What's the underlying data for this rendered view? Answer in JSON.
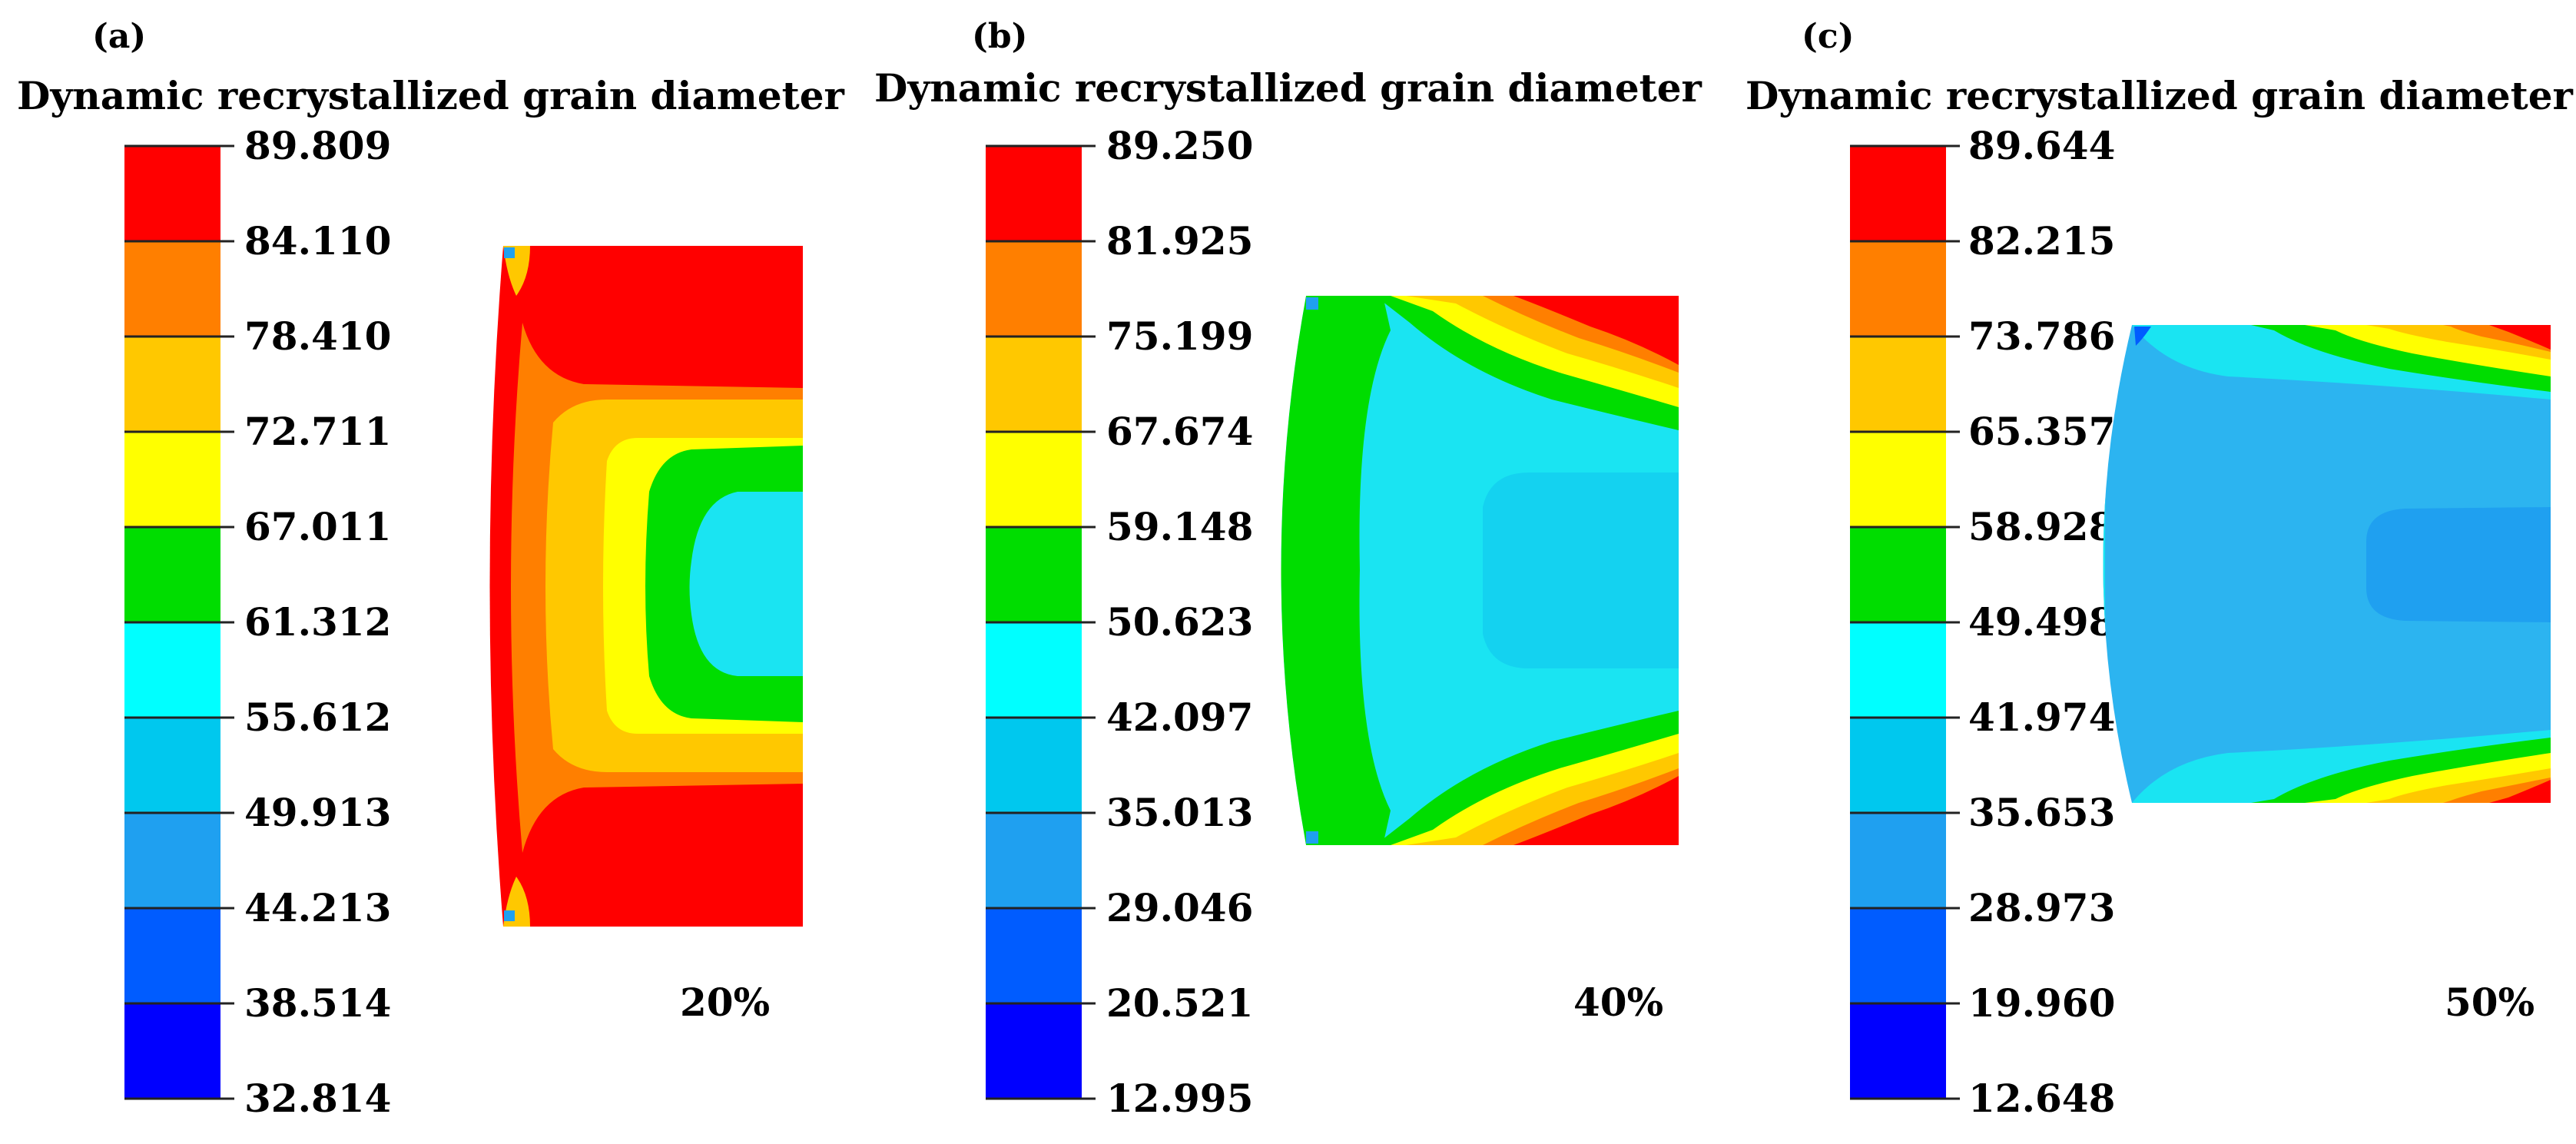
{
  "colors": {
    "scale": [
      "#0000FF",
      "#005CFF",
      "#1FA0F0",
      "#00C8EE",
      "#00FFFF",
      "#00DD00",
      "#FFFF00",
      "#FFC800",
      "#FF7F00",
      "#FF0000"
    ],
    "blue": "#0000FF",
    "blue2": "#005CFF",
    "blue3": "#1FA0F0",
    "cyan2": "#00C8EE",
    "cyan": "#00FFFF",
    "cyan_light": "#1AE4F2",
    "cyan_mid": "#14D2F0",
    "blue_light": "#2CB4F0",
    "green": "#00DD00",
    "yellow": "#FFFF00",
    "gold": "#FFC800",
    "orange": "#FF7F00",
    "red": "#FF0000"
  },
  "panels": [
    {
      "label": "(a)",
      "title": "Dynamic recrystallized grain diameter",
      "ticks": [
        "89.809",
        "84.110",
        "78.410",
        "72.711",
        "67.011",
        "61.312",
        "55.612",
        "49.913",
        "44.213",
        "38.514",
        "32.814"
      ],
      "strain": "20%"
    },
    {
      "label": "(b)",
      "title": "Dynamic recrystallized grain diameter",
      "ticks": [
        "89.250",
        "81.925",
        "75.199",
        "67.674",
        "59.148",
        "50.623",
        "42.097",
        "35.013",
        "29.046",
        "20.521",
        "12.995"
      ],
      "strain": "40%"
    },
    {
      "label": "(c)",
      "title": "Dynamic recrystallized grain diameter",
      "ticks": [
        "89.644",
        "82.215",
        "73.786",
        "65.357",
        "58.928",
        "49.498",
        "41.974",
        "35.653",
        "28.973",
        "19.960",
        "12.648"
      ],
      "strain": "50%"
    }
  ]
}
